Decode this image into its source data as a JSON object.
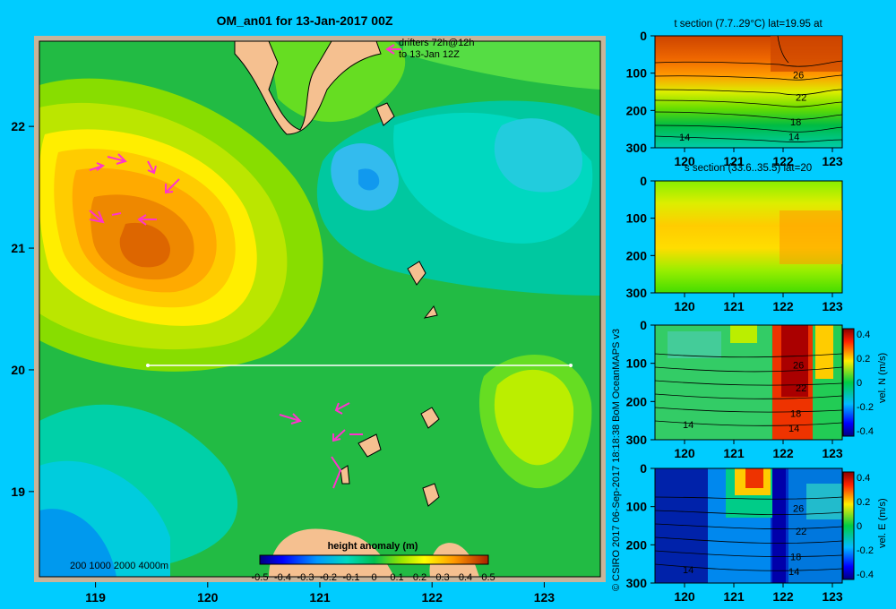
{
  "main_map": {
    "title": "OM_an01 for 13-Jan-2017 00Z",
    "drifters_line1": "drifters 72h@12h",
    "drifters_line2": "to 13-Jan 12Z",
    "depth_legend": "200  1000  2000  4000m",
    "colorbar_title": "height anomaly (m)",
    "colorbar_ticks": [
      "-0.5",
      "-0.4",
      "-0.3",
      "-0.2",
      "-0.1",
      "0",
      "0.1",
      "0.2",
      "0.3",
      "0.4",
      "0.5"
    ],
    "x_ticks": [
      "119",
      "120",
      "121",
      "122",
      "123"
    ],
    "y_ticks": [
      "22",
      "21",
      "20",
      "19"
    ],
    "section_lat": "20"
  },
  "credit": "© CSIRO 2017   06-Sep-2017 18:18:38 BoM OceanMAPS v3",
  "panels": [
    {
      "title": "t section (7.7..29°C) lat=19.95 at",
      "y_ticks": [
        "0",
        "100",
        "200",
        "300"
      ],
      "x_ticks": [
        "120",
        "121",
        "122",
        "123"
      ],
      "contours": [
        "26",
        "22",
        "18",
        "14"
      ]
    },
    {
      "title": "s section (33.6..35.5) lat=20",
      "y_ticks": [
        "0",
        "100",
        "200",
        "300"
      ],
      "x_ticks": [
        "120",
        "121",
        "122",
        "123"
      ]
    },
    {
      "title": "",
      "y_ticks": [
        "0",
        "100",
        "200",
        "300"
      ],
      "x_ticks": [
        "120",
        "121",
        "122",
        "123"
      ],
      "contours": [
        "26",
        "22",
        "18",
        "14"
      ],
      "cb_ticks": [
        "0.4",
        "0.2",
        "0",
        "-0.2",
        "-0.4"
      ],
      "cb_label": "vel. N (m/s)"
    },
    {
      "title": "",
      "y_ticks": [
        "0",
        "100",
        "200",
        "300"
      ],
      "x_ticks": [
        "120",
        "121",
        "122",
        "123"
      ],
      "contours": [
        "26",
        "22",
        "18",
        "14"
      ],
      "cb_ticks": [
        "0.4",
        "0.2",
        "0",
        "-0.2",
        "-0.4"
      ],
      "cb_label": "vel. E (m/s)"
    }
  ],
  "chart_data": {
    "type": "heatmap",
    "title": "OM_an01 for 13-Jan-2017 00Z",
    "variable": "height anomaly (m)",
    "xlim": [
      118.5,
      123.5
    ],
    "ylim": [
      18.3,
      22.7
    ],
    "clim": [
      -0.5,
      0.5
    ],
    "features": [
      {
        "kind": "eddy-high",
        "lon": 119.5,
        "lat": 21.0,
        "peak": 0.4
      },
      {
        "kind": "low",
        "lon": 121.5,
        "lat": 21.5,
        "value": -0.15
      },
      {
        "kind": "low",
        "lon": 118.8,
        "lat": 18.6,
        "value": -0.3
      },
      {
        "kind": "high",
        "lon": 122.8,
        "lat": 19.6,
        "value": 0.1
      }
    ],
    "section": {
      "lat": 20,
      "lon_start": 119.5,
      "lon_end": 123.2
    }
  }
}
